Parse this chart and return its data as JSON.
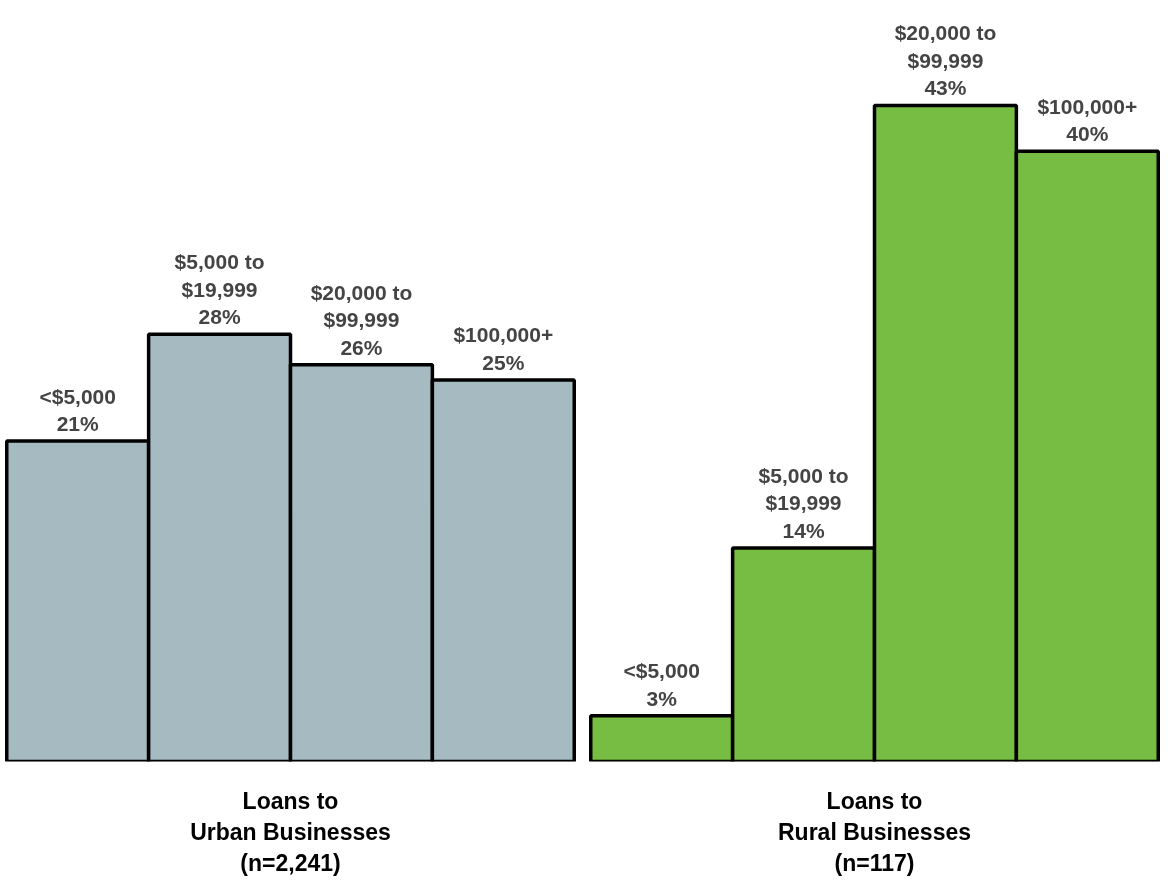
{
  "chart_data": [
    {
      "type": "bar",
      "categories": [
        "<$5,000",
        "$5,000 to $19,999",
        "$20,000 to $99,999",
        "$100,000+"
      ],
      "values": [
        21,
        28,
        26,
        25
      ],
      "value_labels": [
        "21%",
        "28%",
        "26%",
        "25%"
      ],
      "color": "#a5bac1",
      "xlabel": "Loans to\nUrban Businesses\n(n=2,241)",
      "grid": false,
      "tick_labels": false
    },
    {
      "type": "bar",
      "categories": [
        "<$5,000",
        "$5,000 to $19,999",
        "$20,000 to $99,999",
        "$100,000+"
      ],
      "values": [
        3,
        14,
        43,
        40
      ],
      "value_labels": [
        "3%",
        "14%",
        "43%",
        "40%"
      ],
      "color": "#78bd43",
      "xlabel": "Loans to\nRural Businesses\n(n=117)",
      "grid": false,
      "tick_labels": false
    }
  ]
}
